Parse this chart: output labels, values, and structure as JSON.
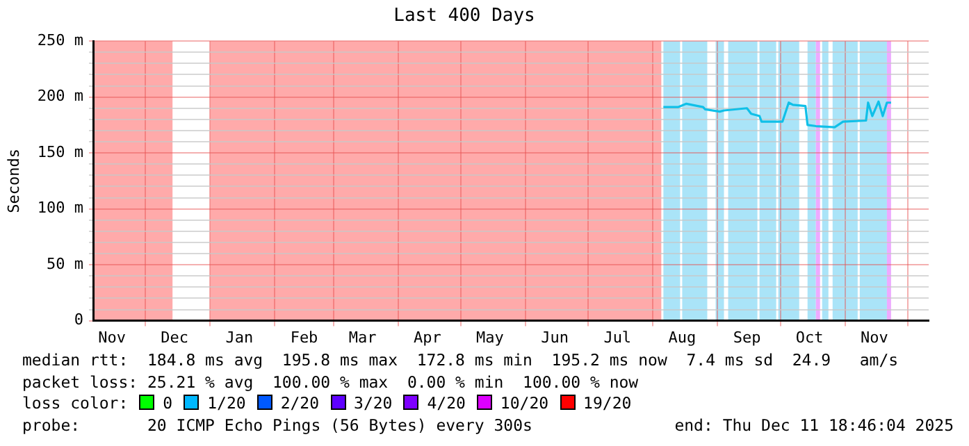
{
  "chart_data": {
    "type": "line",
    "title": "Last 400 Days",
    "ylabel": "Seconds",
    "xlim": [
      "2024-11-06",
      "2025-12-11"
    ],
    "xticks": [
      {
        "value": "2024-11-15",
        "label": "Nov"
      },
      {
        "value": "2024-12-01",
        "label": null
      },
      {
        "value": "2024-12-15",
        "label": "Dec"
      },
      {
        "value": "2025-01-01",
        "label": null
      },
      {
        "value": "2025-01-15",
        "label": "Jan"
      },
      {
        "value": "2025-02-01",
        "label": null
      },
      {
        "value": "2025-02-15",
        "label": "Feb"
      },
      {
        "value": "2025-03-01",
        "label": null
      },
      {
        "value": "2025-03-15",
        "label": "Mar"
      },
      {
        "value": "2025-04-01",
        "label": null
      },
      {
        "value": "2025-04-15",
        "label": "Apr"
      },
      {
        "value": "2025-05-01",
        "label": null
      },
      {
        "value": "2025-05-15",
        "label": "May"
      },
      {
        "value": "2025-06-01",
        "label": null
      },
      {
        "value": "2025-06-15",
        "label": "Jun"
      },
      {
        "value": "2025-07-01",
        "label": null
      },
      {
        "value": "2025-07-15",
        "label": "Jul"
      },
      {
        "value": "2025-08-01",
        "label": null
      },
      {
        "value": "2025-08-15",
        "label": "Aug"
      },
      {
        "value": "2025-09-01",
        "label": null
      },
      {
        "value": "2025-09-15",
        "label": "Sep"
      },
      {
        "value": "2025-10-01",
        "label": null
      },
      {
        "value": "2025-10-15",
        "label": "Oct"
      },
      {
        "value": "2025-11-01",
        "label": null
      },
      {
        "value": "2025-11-15",
        "label": "Nov"
      },
      {
        "value": "2025-12-01",
        "label": null
      }
    ],
    "ylim": [
      0,
      250
    ],
    "yticks": [
      {
        "value": 0,
        "label": "0"
      },
      {
        "value": 10,
        "label": null
      },
      {
        "value": 20,
        "label": null
      },
      {
        "value": 30,
        "label": null
      },
      {
        "value": 40,
        "label": null
      },
      {
        "value": 50,
        "label": "50 m"
      },
      {
        "value": 60,
        "label": null
      },
      {
        "value": 70,
        "label": null
      },
      {
        "value": 80,
        "label": null
      },
      {
        "value": 90,
        "label": null
      },
      {
        "value": 100,
        "label": "100 m"
      },
      {
        "value": 110,
        "label": null
      },
      {
        "value": 120,
        "label": null
      },
      {
        "value": 130,
        "label": null
      },
      {
        "value": 140,
        "label": null
      },
      {
        "value": 150,
        "label": "150 m"
      },
      {
        "value": 160,
        "label": null
      },
      {
        "value": 170,
        "label": null
      },
      {
        "value": 180,
        "label": null
      },
      {
        "value": 190,
        "label": null
      },
      {
        "value": 200,
        "label": "200 m"
      },
      {
        "value": 210,
        "label": null
      },
      {
        "value": 220,
        "label": null
      },
      {
        "value": 230,
        "label": null
      },
      {
        "value": 240,
        "label": null
      },
      {
        "value": 250,
        "label": "250 m"
      }
    ],
    "grid": true,
    "legend": "bottom",
    "legend_title": "loss color:",
    "marker": "none",
    "line_style": "solid",
    "x": [
      "2025-08-06",
      "2025-08-13",
      "2025-08-17",
      "2025-08-25",
      "2025-08-26",
      "2025-09-02",
      "2025-09-04",
      "2025-09-15",
      "2025-09-17",
      "2025-09-21",
      "2025-09-22",
      "2025-10-02",
      "2025-10-05",
      "2025-10-07",
      "2025-10-13",
      "2025-10-14",
      "2025-10-18",
      "2025-10-27",
      "2025-10-31",
      "2025-11-11",
      "2025-11-12",
      "2025-11-14",
      "2025-11-17",
      "2025-11-19",
      "2025-11-21",
      "2025-11-23"
    ],
    "series": [
      {
        "color": "#10c0e8",
        "values": [
          191,
          191,
          194,
          191,
          189,
          187,
          188,
          190,
          185,
          183,
          178,
          178,
          195,
          193,
          192,
          175,
          174,
          173,
          178,
          179,
          195,
          183,
          196,
          183,
          195,
          195
        ]
      },
      {
        "name": "0",
        "color": "#00ff00",
        "values": [
          null,
          null,
          null,
          null,
          null,
          null,
          null,
          null,
          null,
          null,
          null,
          null,
          null,
          null,
          null,
          null,
          null,
          null,
          null,
          null,
          null,
          null,
          null,
          null,
          null,
          null
        ]
      },
      {
        "name": "1/20",
        "color": "#00b8ff",
        "values": [
          null,
          null,
          null,
          null,
          null,
          null,
          null,
          null,
          null,
          null,
          null,
          null,
          null,
          null,
          null,
          null,
          null,
          null,
          null,
          null,
          null,
          null,
          null,
          null,
          null,
          null
        ]
      },
      {
        "name": "2/20",
        "color": "#0059ff",
        "values": [
          null,
          null,
          null,
          null,
          null,
          null,
          null,
          null,
          null,
          null,
          null,
          null,
          null,
          null,
          null,
          null,
          null,
          null,
          null,
          null,
          null,
          null,
          null,
          null,
          null,
          null
        ]
      },
      {
        "name": "3/20",
        "color": "#5e00ff",
        "values": [
          null,
          null,
          null,
          null,
          null,
          null,
          null,
          null,
          null,
          null,
          null,
          null,
          null,
          null,
          null,
          null,
          null,
          null,
          null,
          null,
          null,
          null,
          null,
          null,
          null,
          null
        ]
      },
      {
        "name": "4/20",
        "color": "#7e00ff",
        "values": [
          null,
          null,
          null,
          null,
          null,
          null,
          null,
          null,
          null,
          null,
          null,
          null,
          null,
          null,
          null,
          null,
          null,
          null,
          null,
          null,
          null,
          null,
          null,
          null,
          null,
          null
        ]
      },
      {
        "name": "10/20",
        "color": "#dd00ff",
        "values": [
          null,
          null,
          null,
          null,
          null,
          null,
          null,
          null,
          null,
          null,
          null,
          null,
          null,
          null,
          null,
          null,
          null,
          null,
          null,
          null,
          null,
          null,
          null,
          null,
          null,
          null
        ]
      },
      {
        "name": "19/20",
        "color": "#ff0000",
        "values": [
          null,
          null,
          null,
          null,
          null,
          null,
          null,
          null,
          null,
          null,
          null,
          null,
          null,
          null,
          null,
          null,
          null,
          null,
          null,
          null,
          null,
          null,
          null,
          null,
          null,
          null
        ]
      }
    ],
    "bands": [
      {
        "axis": "x",
        "from": "2024-11-06",
        "to": "2024-12-14",
        "color": "#ffaaaa"
      },
      {
        "axis": "x",
        "from": "2025-01-01",
        "to": "2025-08-05",
        "color": "#ffaaaa"
      },
      {
        "axis": "x",
        "from": "2025-08-06",
        "to": "2025-08-14",
        "color": "#aae4f8"
      },
      {
        "axis": "x",
        "from": "2025-08-15",
        "to": "2025-08-27",
        "color": "#aae4f8"
      },
      {
        "axis": "x",
        "from": "2025-08-31",
        "to": "2025-09-04",
        "color": "#aae4f8"
      },
      {
        "axis": "x",
        "from": "2025-09-06",
        "to": "2025-09-20",
        "color": "#aae4f8"
      },
      {
        "axis": "x",
        "from": "2025-09-21",
        "to": "2025-09-29",
        "color": "#aae4f8"
      },
      {
        "axis": "x",
        "from": "2025-09-30",
        "to": "2025-10-10",
        "color": "#aae4f8"
      },
      {
        "axis": "x",
        "from": "2025-10-14",
        "to": "2025-10-18",
        "color": "#aae4f8"
      },
      {
        "axis": "x",
        "from": "2025-10-18",
        "to": "2025-10-20",
        "color": "#eeaaff"
      },
      {
        "axis": "x",
        "from": "2025-10-21",
        "to": "2025-10-24",
        "color": "#aae4f8"
      },
      {
        "axis": "x",
        "from": "2025-10-26",
        "to": "2025-11-07",
        "color": "#aae4f8"
      },
      {
        "axis": "x",
        "from": "2025-11-08",
        "to": "2025-11-21",
        "color": "#aae4f8"
      },
      {
        "axis": "x",
        "from": "2025-11-21",
        "to": "2025-11-23",
        "color": "#eeaaff"
      }
    ],
    "annotations": [
      "median rtt:  184.8 ms avg  195.8 ms max  172.8 ms min  195.2 ms now  7.4 ms sd  24.9   am/s",
      "packet loss: 25.21 % avg  100.00 % max  0.00 % min  100.00 % now",
      "probe:       20 ICMP Echo Pings (56 Bytes) every 300s",
      "end: Thu Dec 11 18:46:04 2025"
    ]
  }
}
